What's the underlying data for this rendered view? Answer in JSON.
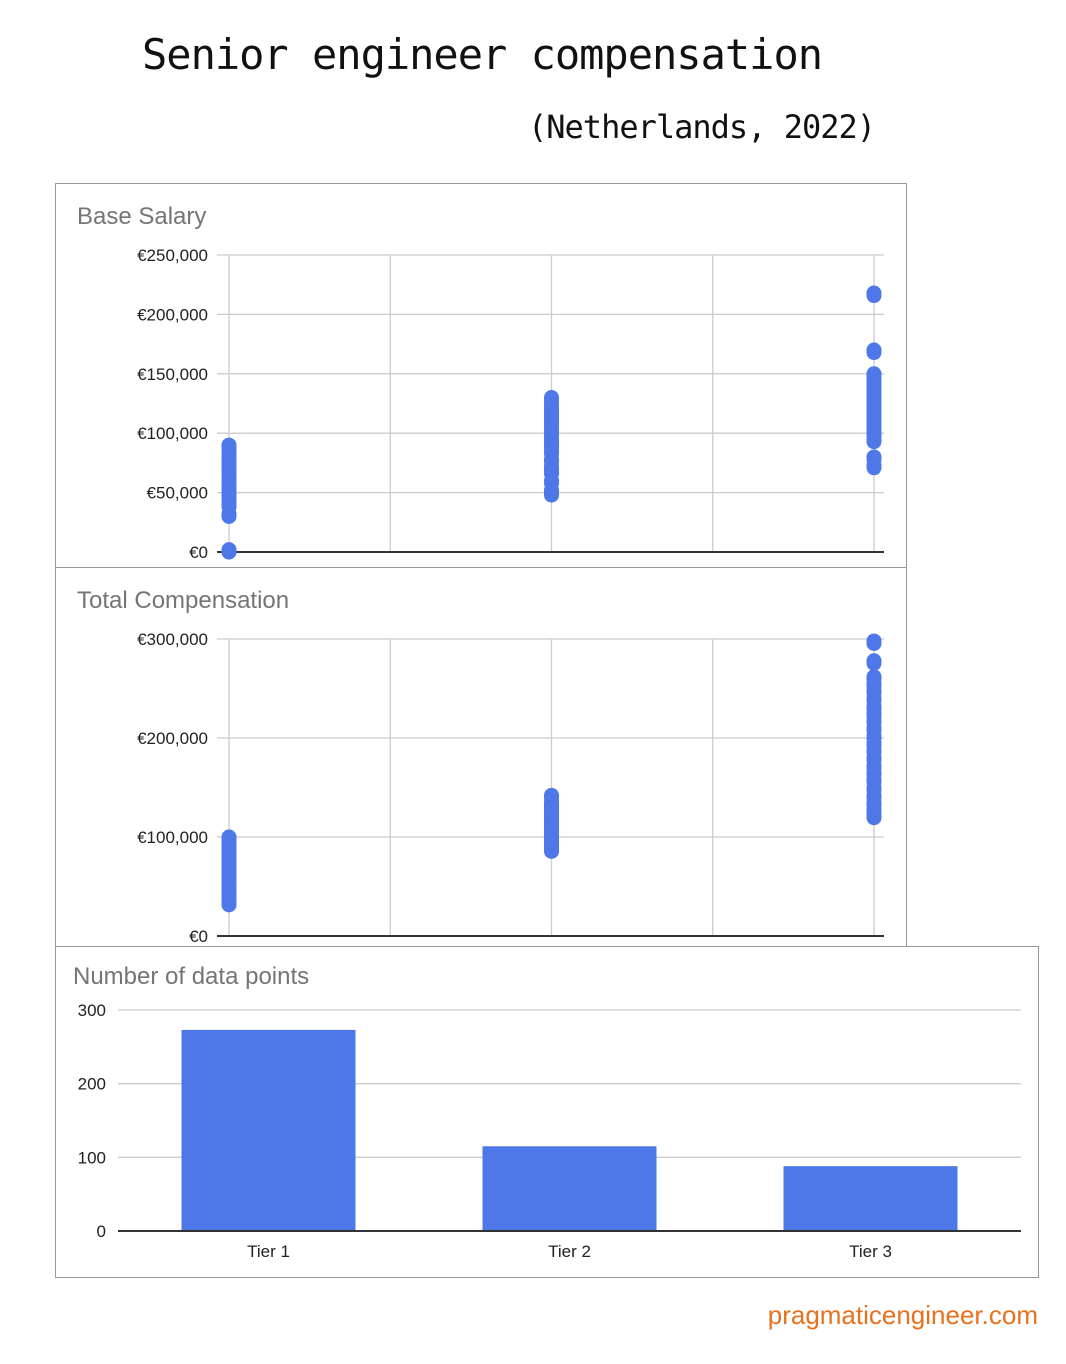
{
  "header": {
    "title": "Senior engineer compensation",
    "subtitle": "(Netherlands, 2022)"
  },
  "credit": "pragmaticengineer.com",
  "colors": {
    "series": "#4e77e8",
    "grid": "#cccccc",
    "axis": "#333333"
  },
  "chart_data": [
    {
      "type": "scatter",
      "title": "Base Salary",
      "ylim": [
        0,
        250000
      ],
      "yticks": [
        "€0",
        "€50,000",
        "€100,000",
        "€150,000",
        "€200,000",
        "€250,000"
      ],
      "xlim": [
        1,
        3
      ],
      "grid": true,
      "series": [
        {
          "x": 1,
          "values": [
            2000,
            32000,
            40000,
            45000,
            50000,
            55000,
            60000,
            65000,
            70000,
            75000,
            80000,
            85000,
            90000
          ]
        },
        {
          "x": 2,
          "values": [
            50000,
            52000,
            60000,
            68000,
            72000,
            78000,
            85000,
            90000,
            95000,
            100000,
            105000,
            110000,
            115000,
            120000,
            125000,
            130000
          ]
        },
        {
          "x": 3,
          "values": [
            73000,
            80000,
            95000,
            100000,
            105000,
            110000,
            115000,
            120000,
            125000,
            130000,
            135000,
            140000,
            145000,
            150000,
            170000,
            218000
          ]
        }
      ]
    },
    {
      "type": "scatter",
      "title": "Total Compensation",
      "ylim": [
        0,
        300000
      ],
      "yticks": [
        "€0",
        "€100,000",
        "€200,000",
        "€300,000"
      ],
      "xlim": [
        1,
        3
      ],
      "grid": true,
      "series": [
        {
          "x": 1,
          "values": [
            34000,
            40000,
            45000,
            50000,
            55000,
            60000,
            65000,
            70000,
            75000,
            80000,
            85000,
            90000,
            95000,
            100000
          ]
        },
        {
          "x": 2,
          "values": [
            88000,
            92000,
            96000,
            100000,
            105000,
            110000,
            115000,
            120000,
            125000,
            130000,
            135000,
            142000
          ]
        },
        {
          "x": 3,
          "values": [
            122000,
            128000,
            135000,
            142000,
            150000,
            158000,
            165000,
            172000,
            180000,
            188000,
            195000,
            202000,
            210000,
            218000,
            225000,
            232000,
            240000,
            248000,
            255000,
            262000,
            278000,
            298000
          ]
        }
      ]
    },
    {
      "type": "bar",
      "title": "Number of data points",
      "categories": [
        "Tier 1",
        "Tier 2",
        "Tier 3"
      ],
      "values": [
        273,
        115,
        88
      ],
      "ylim": [
        0,
        300
      ],
      "yticks": [
        "0",
        "100",
        "200",
        "300"
      ],
      "grid": true
    }
  ]
}
